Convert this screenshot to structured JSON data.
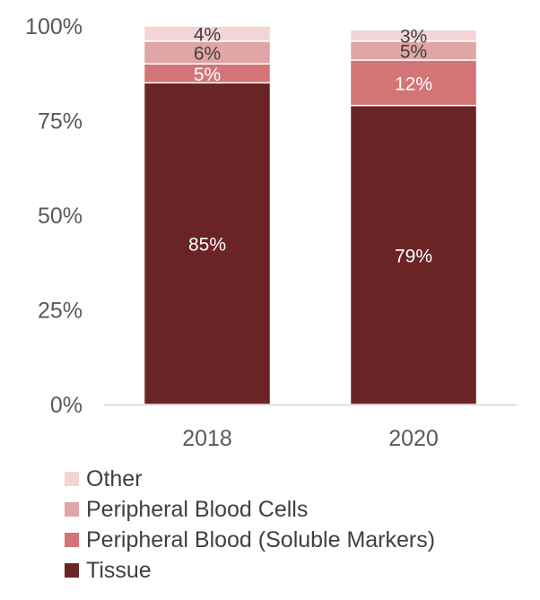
{
  "chart_data": {
    "type": "bar",
    "stacked": true,
    "categories": [
      "2018",
      "2020"
    ],
    "series": [
      {
        "name": "Tissue",
        "values": [
          85,
          79
        ],
        "labels": [
          "85%",
          "79%"
        ],
        "color": "#6b2426",
        "label_color": "#ffffff"
      },
      {
        "name": "Peripheral Blood (Soluble Markers)",
        "values": [
          5,
          12
        ],
        "labels": [
          "5%",
          "12%"
        ],
        "color": "#d37476",
        "label_color": "#ffffff"
      },
      {
        "name": "Peripheral Blood Cells",
        "values": [
          6,
          5
        ],
        "labels": [
          "6%",
          "5%"
        ],
        "color": "#e0a5a5",
        "label_color": "#404040"
      },
      {
        "name": "Other",
        "values": [
          4,
          3
        ],
        "labels": [
          "4%",
          "3%"
        ],
        "color": "#f3d5d5",
        "label_color": "#404040"
      }
    ],
    "yticks": [
      "0%",
      "25%",
      "50%",
      "75%",
      "100%"
    ],
    "ylim": [
      0,
      100
    ],
    "grid": false,
    "legend_position": "bottom-left"
  }
}
